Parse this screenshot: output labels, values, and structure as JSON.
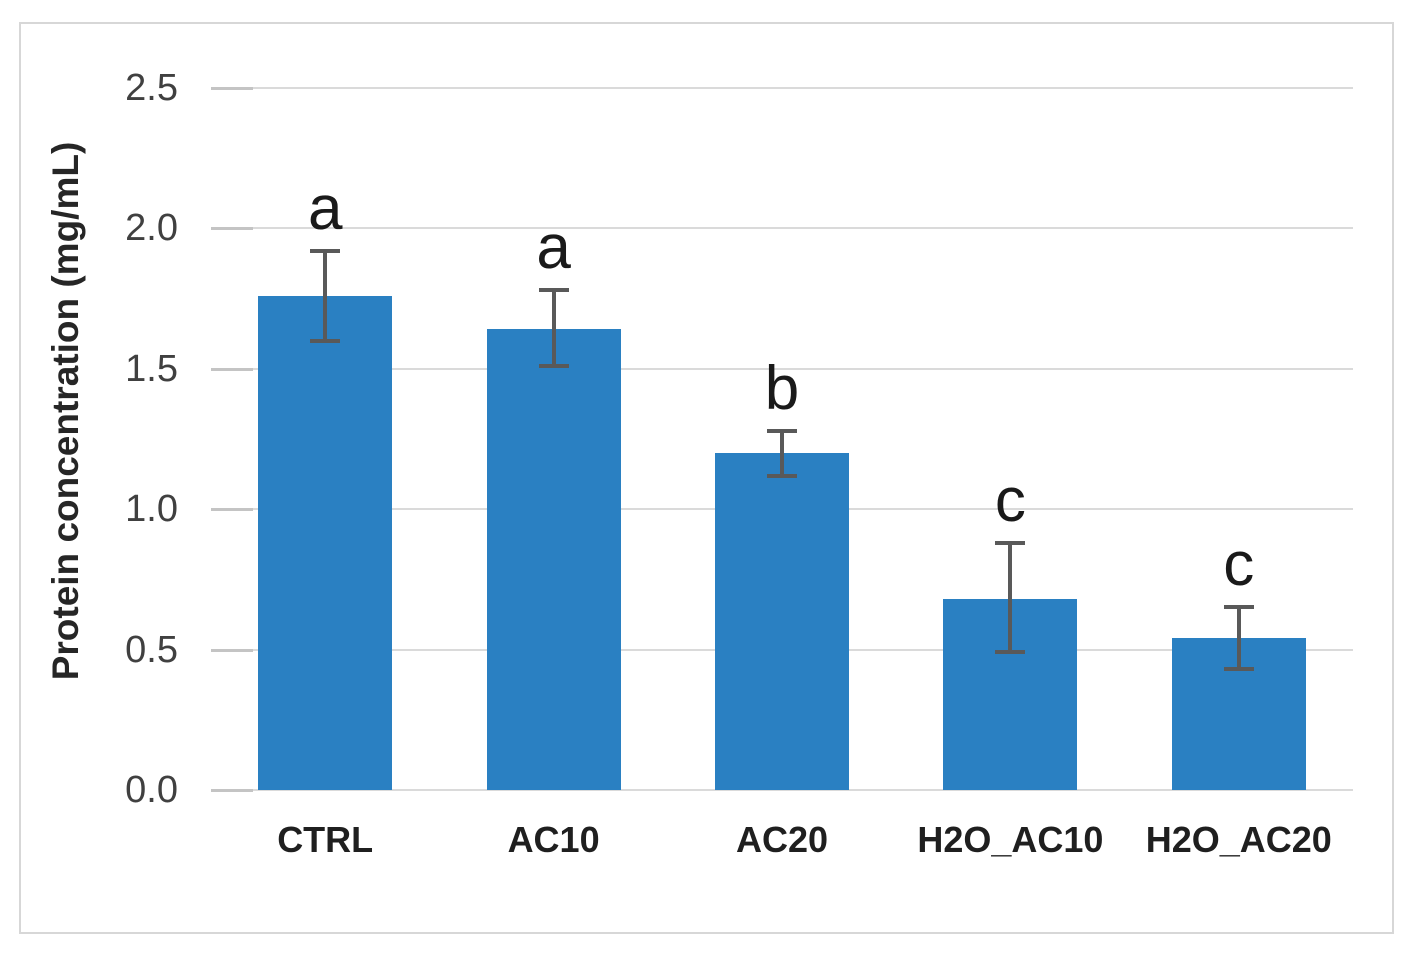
{
  "figure": {
    "background": "#ffffff",
    "frame_border_color": "#d7d7d7"
  },
  "chart_data": {
    "type": "bar",
    "title": "",
    "ylabel": "Protein concentration (mg/mL)",
    "xlabel": "",
    "categories": [
      "CTRL",
      "AC10",
      "AC20",
      "H2O_AC10",
      "H2O_AC20"
    ],
    "values": [
      1.76,
      1.64,
      1.2,
      0.68,
      0.54
    ],
    "error_high": [
      1.92,
      1.78,
      1.28,
      0.88,
      0.65
    ],
    "error_low": [
      1.6,
      1.51,
      1.12,
      0.49,
      0.43
    ],
    "sig_letters": [
      "a",
      "a",
      "b",
      "c",
      "c"
    ],
    "yticks": [
      0,
      0.5,
      1,
      1.5,
      2,
      2.5
    ],
    "ylim": [
      0,
      2.5
    ],
    "grid": true,
    "legend": false,
    "bar_color": "#2a80c2",
    "gridline_color": "#dadada",
    "tick_color": "#c4c4c4",
    "error_bar_color": "#595959",
    "tick_label_color": "#404040",
    "category_label_color": "#1f1f1f",
    "letter_color": "#1a1a1a",
    "axis_title_color": "#262626"
  }
}
